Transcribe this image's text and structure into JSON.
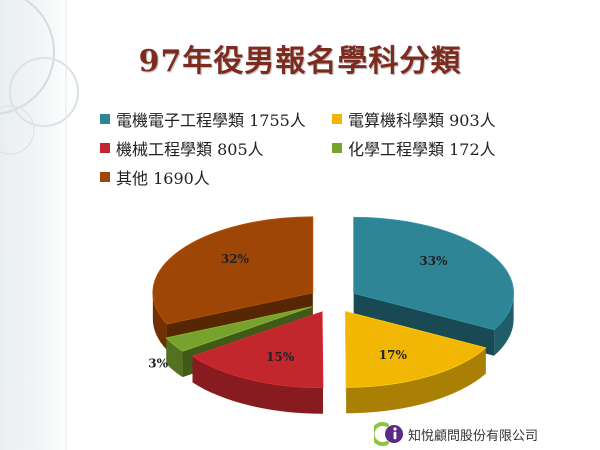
{
  "slide": {
    "title": "97年役男報名學科分類"
  },
  "company": {
    "name": "知悅顧問股份有限公司"
  },
  "colors": {
    "electronics": "#2e8596",
    "computer": "#f2b705",
    "mechanical": "#c1272d",
    "chemical": "#77a22e",
    "other": "#9e4606",
    "title": "#7d2b1f"
  },
  "chart_data": {
    "type": "pie",
    "title": "97年役男報名學科分類",
    "legend_position": "top",
    "categories": [
      "電機電子工程學類",
      "電算機科學類",
      "機械工程學類",
      "化學工程學類",
      "其他"
    ],
    "values": [
      1755,
      903,
      805,
      172,
      1690
    ],
    "units": "人",
    "legend_labels": [
      "電機電子工程學類 1755人",
      "電算機科學類 903人",
      "機械工程學類 805人",
      "化學工程學類 172人",
      "其他 1690人"
    ],
    "percent_labels": [
      "33%",
      "17%",
      "15%",
      "3%",
      "32%"
    ],
    "colors": [
      "#2e8596",
      "#f2b705",
      "#c1272d",
      "#77a22e",
      "#9e4606"
    ],
    "style": "3D exploded pie"
  }
}
